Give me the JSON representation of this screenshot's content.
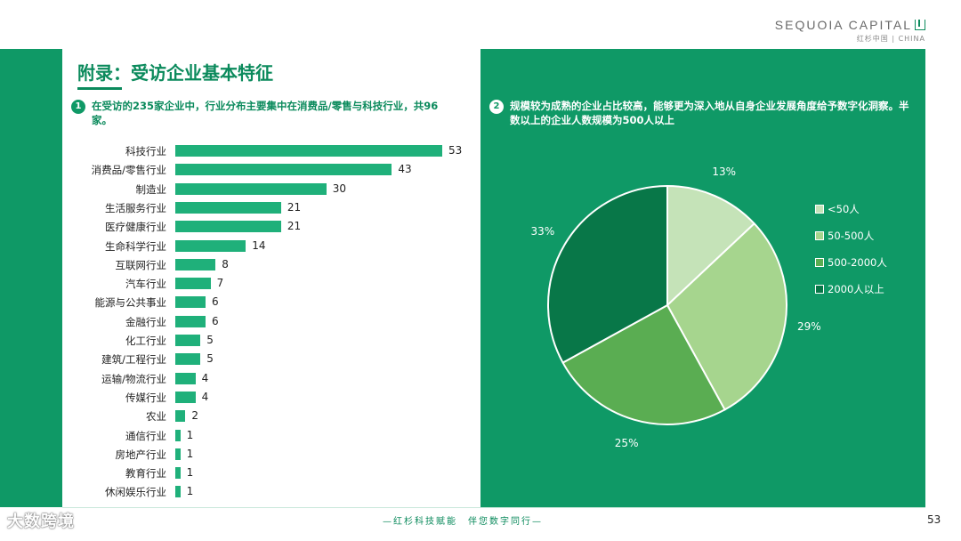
{
  "brand": {
    "name": "SEQUOIA CAPITAL",
    "sub": "红杉中国 | CHINA"
  },
  "title": "附录：受访企业基本特征",
  "left_note": {
    "badge": "1",
    "text": "在受访的235家企业中，行业分布主要集中在消费品/零售与科技行业，共96家。"
  },
  "right_note": {
    "badge": "2",
    "text": "规模较为成熟的企业占比较高，能够更为深入地从自身企业发展角度给予数字化洞察。半数以上的企业人数规模为500人以上"
  },
  "footer": {
    "slogan": "—红杉科技赋能　伴您数字同行—",
    "page": "53",
    "watermark": "大数跨境"
  },
  "colors": {
    "brand_green": "#0f9966",
    "bar_green": "#1fb07a"
  },
  "chart_data": [
    {
      "type": "bar",
      "orientation": "horizontal",
      "title": "",
      "categories": [
        "科技行业",
        "消费品/零售行业",
        "制造业",
        "生活服务行业",
        "医疗健康行业",
        "生命科学行业",
        "互联网行业",
        "汽车行业",
        "能源与公共事业",
        "金融行业",
        "化工行业",
        "建筑/工程行业",
        "运输/物流行业",
        "传媒行业",
        "农业",
        "通信行业",
        "房地产行业",
        "教育行业",
        "休闲娱乐行业"
      ],
      "values": [
        53,
        43,
        30,
        21,
        21,
        14,
        8,
        7,
        6,
        6,
        5,
        5,
        4,
        4,
        2,
        1,
        1,
        1,
        1
      ],
      "xlim": [
        0,
        55
      ]
    },
    {
      "type": "pie",
      "labels": [
        "<50人",
        "50-500人",
        "500-2000人",
        "2000人以上"
      ],
      "values": [
        13,
        29,
        25,
        33
      ],
      "value_labels": [
        "13%",
        "29%",
        "25%",
        "33%"
      ],
      "colors": [
        "#c5e3b8",
        "#a6d58e",
        "#5aad52",
        "#087748"
      ],
      "legend": "right"
    }
  ]
}
